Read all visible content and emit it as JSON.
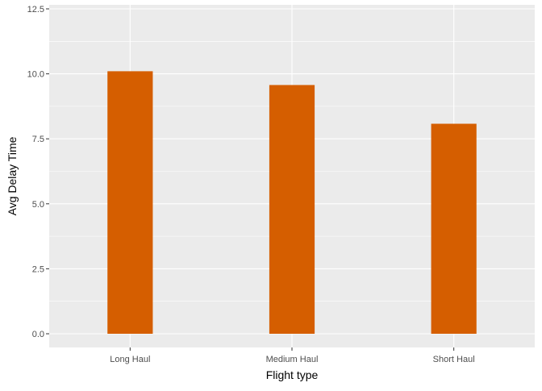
{
  "chart_data": {
    "type": "bar",
    "title": "",
    "xlabel": "Flight type",
    "ylabel": "Avg Delay Time",
    "categories": [
      "Long Haul",
      "Medium Haul",
      "Short Haul"
    ],
    "values": [
      10.1,
      9.57,
      8.08
    ],
    "ylim": [
      -0.62,
      12.5
    ],
    "yticks": [
      0,
      2.5,
      5,
      7.5,
      10,
      12.5
    ],
    "ytick_labels": [
      "0.0",
      "2.5",
      "5.0",
      "7.5",
      "10.0",
      "12.5"
    ],
    "grid": true,
    "legend": "none",
    "colors": {
      "bar": "#d55e00",
      "panel_background": "#ebebeb",
      "grid_line": "#ffffff"
    }
  }
}
